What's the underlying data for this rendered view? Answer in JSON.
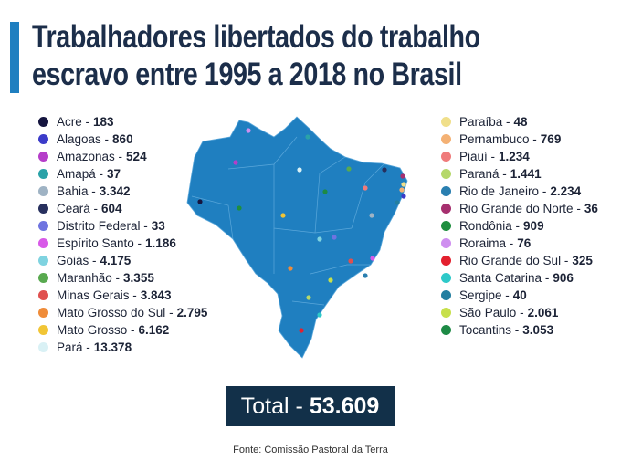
{
  "title": {
    "line1": "Trabalhadores libertados do trabalho",
    "line2": "escravo entre 1995 a 2018 no Brasil"
  },
  "legend_left": [
    {
      "state": "Acre",
      "value": "183",
      "color": "#15153f"
    },
    {
      "state": "Alagoas",
      "value": "860",
      "color": "#3b3bc9"
    },
    {
      "state": "Amazonas",
      "value": "524",
      "color": "#b53ec9"
    },
    {
      "state": "Amapá",
      "value": "37",
      "color": "#2aa2a8"
    },
    {
      "state": "Bahia",
      "value": "3.342",
      "color": "#9fb3c4"
    },
    {
      "state": "Ceará",
      "value": "604",
      "color": "#27305e"
    },
    {
      "state": "Distrito Federal",
      "value": "33",
      "color": "#6f74e0"
    },
    {
      "state": "Espírito Santo",
      "value": "1.186",
      "color": "#d85ae8"
    },
    {
      "state": "Goiás",
      "value": "4.175",
      "color": "#7fd3e0"
    },
    {
      "state": "Maranhão",
      "value": "3.355",
      "color": "#58a94f"
    },
    {
      "state": "Minas Gerais",
      "value": "3.843",
      "color": "#e0504f"
    },
    {
      "state": "Mato Grosso do Sul",
      "value": "2.795",
      "color": "#ef8c3a"
    },
    {
      "state": "Mato Grosso",
      "value": "6.162",
      "color": "#f1c535"
    },
    {
      "state": "Pará",
      "value": "13.378",
      "color": "#d9f1f5"
    }
  ],
  "legend_right": [
    {
      "state": "Paraíba",
      "value": "48",
      "color": "#f0df8a"
    },
    {
      "state": "Pernambuco",
      "value": "769",
      "color": "#f4b174"
    },
    {
      "state": "Piauí",
      "value": "1.234",
      "color": "#ef7b7b"
    },
    {
      "state": "Paraná",
      "value": "1.441",
      "color": "#b5d86a"
    },
    {
      "state": "Rio de Janeiro",
      "value": "2.234",
      "color": "#2a7fb0"
    },
    {
      "state": "Rio Grande do Norte",
      "value": "36",
      "color": "#a6306f"
    },
    {
      "state": "Rondônia",
      "value": "909",
      "color": "#1e8e3e"
    },
    {
      "state": "Roraima",
      "value": "76",
      "color": "#cf8ff0"
    },
    {
      "state": "Rio Grande do Sul",
      "value": "325",
      "color": "#e3202e"
    },
    {
      "state": "Santa Catarina",
      "value": "906",
      "color": "#2ec9c9"
    },
    {
      "state": "Sergipe",
      "value": "40",
      "color": "#237ea0"
    },
    {
      "state": "São Paulo",
      "value": "2.061",
      "color": "#c7e04c"
    },
    {
      "state": "Tocantins",
      "value": "3.053",
      "color": "#1d8a45"
    }
  ],
  "map_color": "#1f7fc0",
  "total": {
    "label": "Total -",
    "value": "53.609"
  },
  "source": "Fonte: Comissão Pastoral da Terra"
}
